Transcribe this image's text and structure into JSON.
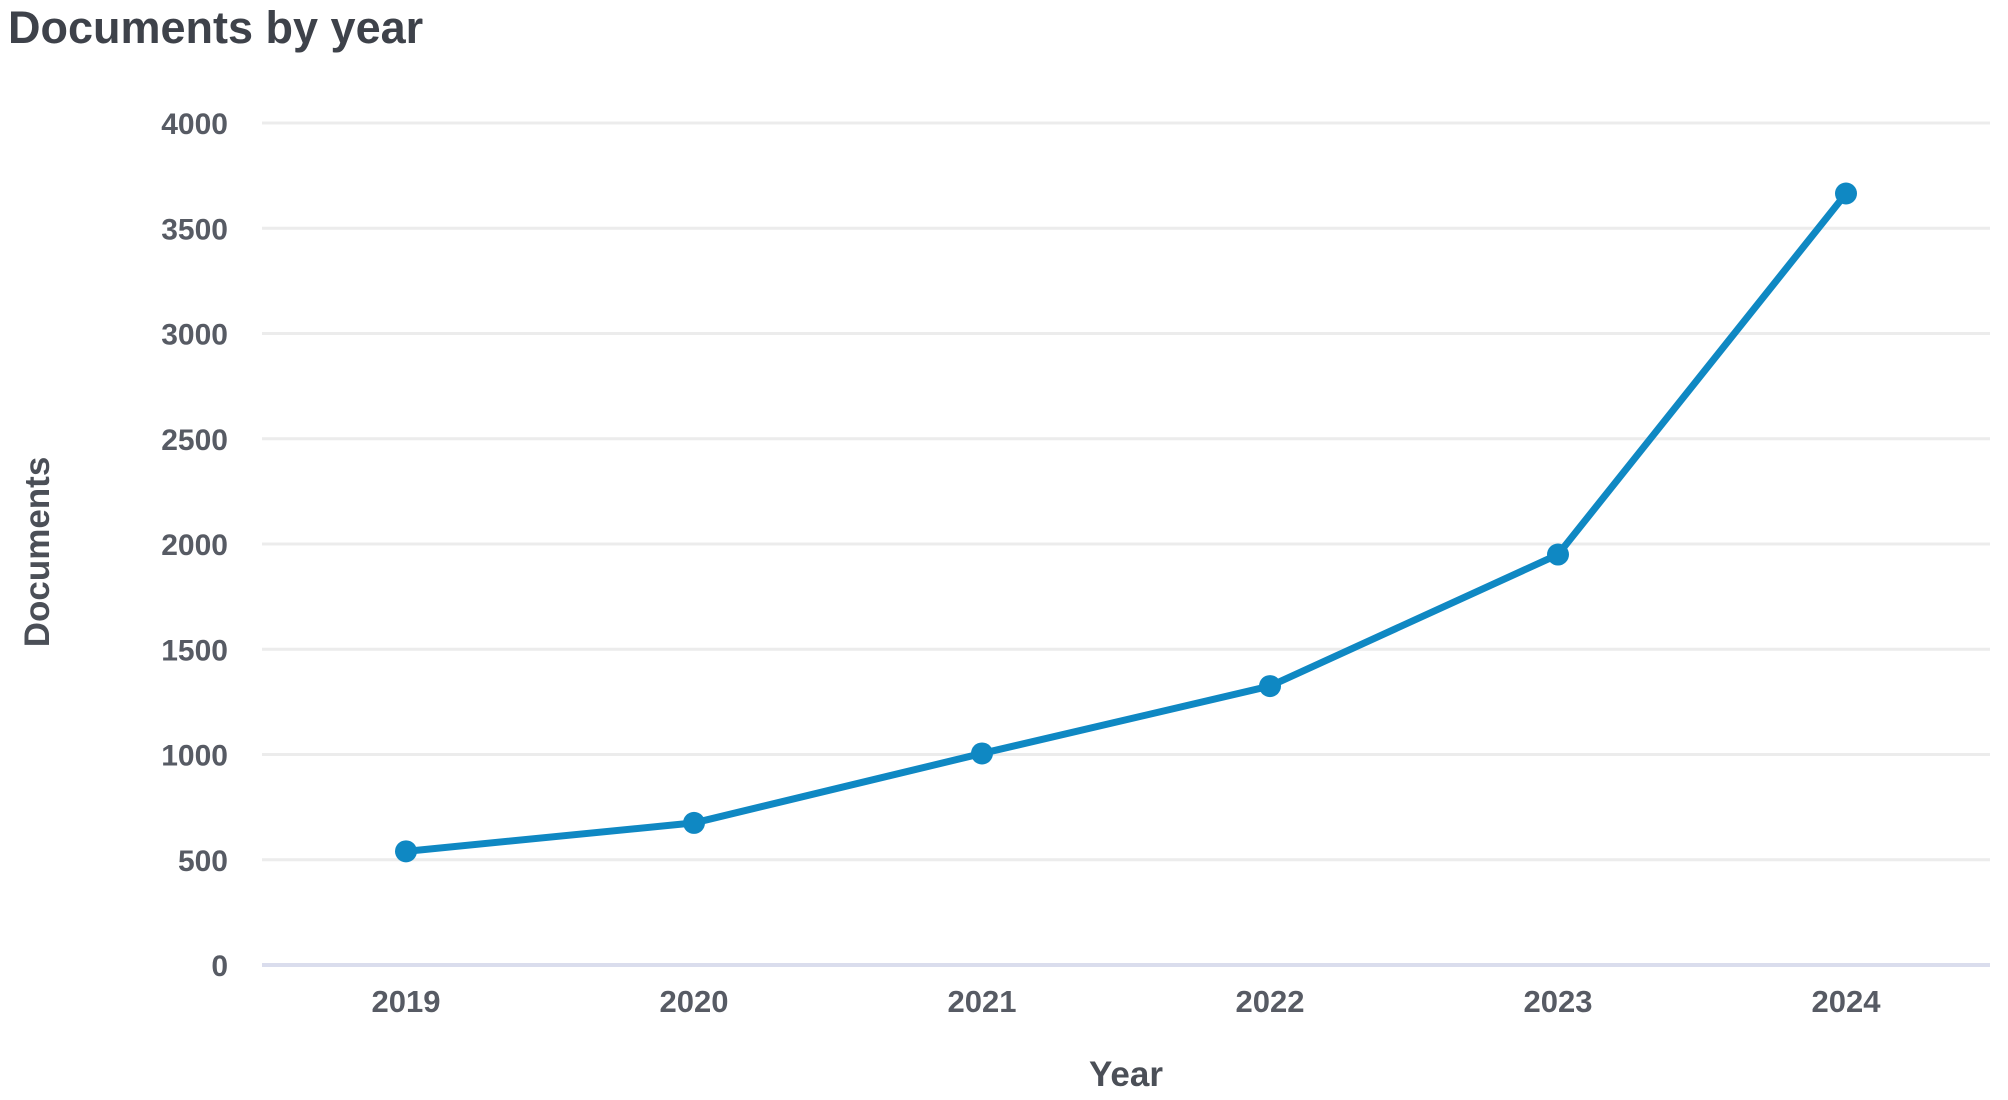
{
  "page": {
    "title": "Documents by year"
  },
  "colors": {
    "line": "#0f88c3",
    "marker": "#0f88c3",
    "gridline": "#ececec",
    "baseline": "#dadded",
    "title_text": "#3e424a",
    "axis_title_text": "#4b4f57",
    "tick_text": "#575b64",
    "background": "#ffffff"
  },
  "chart_data": {
    "type": "line",
    "title": "Documents by year",
    "xlabel": "Year",
    "ylabel": "Documents",
    "categories": [
      "2019",
      "2020",
      "2021",
      "2022",
      "2023",
      "2024"
    ],
    "series": [
      {
        "name": "Documents",
        "values": [
          540,
          675,
          1005,
          1325,
          1950,
          3665
        ]
      }
    ],
    "ylim": [
      0,
      4000
    ],
    "yticks": [
      0,
      500,
      1000,
      1500,
      2000,
      2500,
      3000,
      3500,
      4000
    ],
    "grid": "horizontal",
    "legend_position": "none",
    "marker_style": "circle"
  }
}
